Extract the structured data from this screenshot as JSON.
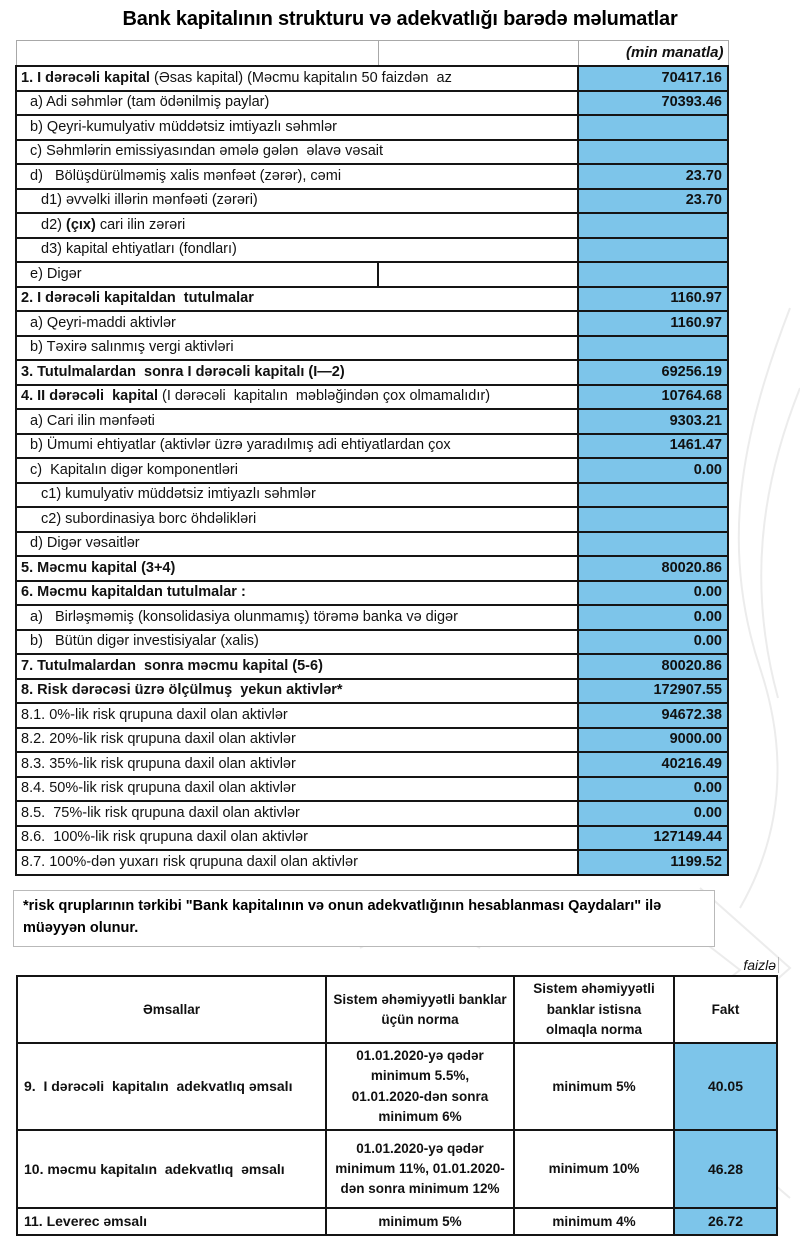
{
  "page": {
    "title": "Bank kapitalının strukturu və adekvatlığı barədə məlumatlar"
  },
  "colors": {
    "value_cell_blue": "#7dc5ea",
    "grid_black": "#151515",
    "light_gray_border": "#b9b9b9"
  },
  "capital_table": {
    "unit_label": "(min manatla)",
    "rows": [
      {
        "segments": [
          {
            "t": "1. I dərəcəli kapital",
            "b": true
          },
          {
            "t": " (Əsas kapital) (Məcmu kapitalın 50 faizdən  az",
            "b": false
          }
        ],
        "value": "70417.16",
        "indent": 0
      },
      {
        "segments": [
          {
            "t": "a) Adi səhmlər (tam ödənilmiş paylar)",
            "b": false
          }
        ],
        "value": "70393.46",
        "indent": 1
      },
      {
        "segments": [
          {
            "t": "b) Qeyri-kumulyativ müddətsiz imtiyazlı səhmlər",
            "b": false
          }
        ],
        "value": "",
        "indent": 1
      },
      {
        "segments": [
          {
            "t": "c) Səhmlərin emissiyasından əmələ gələn  əlavə vəsait",
            "b": false
          }
        ],
        "value": "",
        "indent": 1
      },
      {
        "segments": [
          {
            "t": "d)   Bölüşdürülməmiş xalis mənfəət (zərər), cəmi",
            "b": false
          }
        ],
        "value": "23.70",
        "indent": 1
      },
      {
        "segments": [
          {
            "t": "d1) əvvəlki illərin mənfəəti (zərəri)",
            "b": false
          }
        ],
        "value": "23.70",
        "indent": 2
      },
      {
        "segments": [
          {
            "t": "d2) ",
            "b": false
          },
          {
            "t": "(çıx)",
            "b": true
          },
          {
            "t": " cari ilin zərəri",
            "b": false
          }
        ],
        "value": "",
        "indent": 2
      },
      {
        "segments": [
          {
            "t": "d3) kapital ehtiyatları (fondları)",
            "b": false
          }
        ],
        "value": "",
        "indent": 2
      },
      {
        "segments": [
          {
            "t": "e) Digər",
            "b": false
          }
        ],
        "value": "",
        "indent": 1,
        "split": true
      },
      {
        "segments": [
          {
            "t": "2. I dərəcəli kapitaldan  tutulmalar",
            "b": true
          }
        ],
        "value": "1160.97",
        "indent": 0
      },
      {
        "segments": [
          {
            "t": "a) Qeyri-maddi aktivlər",
            "b": false
          }
        ],
        "value": "1160.97",
        "indent": 1
      },
      {
        "segments": [
          {
            "t": "b) Təxirə salınmış vergi aktivləri",
            "b": false
          }
        ],
        "value": "",
        "indent": 1
      },
      {
        "segments": [
          {
            "t": "3. Tutulmalardan  sonra I dərəcəli kapitalı (I—2)",
            "b": true
          }
        ],
        "value": "69256.19",
        "indent": 0
      },
      {
        "segments": [
          {
            "t": "4. II dərəcəli  kapital",
            "b": true
          },
          {
            "t": " (I dərəcəli  kapitalın  məbləğindən çox olmamalıdır)",
            "b": false
          }
        ],
        "value": "10764.68",
        "indent": 0
      },
      {
        "segments": [
          {
            "t": "a) Cari ilin mənfəəti",
            "b": false
          }
        ],
        "value": "9303.21",
        "indent": 1
      },
      {
        "segments": [
          {
            "t": "b) Ümumi ehtiyatlar (aktivlər üzrə yaradılmış adi ehtiyatlardan çox",
            "b": false
          }
        ],
        "value": "1461.47",
        "indent": 1
      },
      {
        "segments": [
          {
            "t": "c)  Kapitalın digər komponentləri",
            "b": false
          }
        ],
        "value": "0.00",
        "indent": 1
      },
      {
        "segments": [
          {
            "t": "c1) kumulyativ müddətsiz imtiyazlı səhmlər",
            "b": false
          }
        ],
        "value": "",
        "indent": 2
      },
      {
        "segments": [
          {
            "t": "c2) subordinasiya borc öhdəlikləri",
            "b": false
          }
        ],
        "value": "",
        "indent": 2
      },
      {
        "segments": [
          {
            "t": "d) Digər vəsaitlər",
            "b": false
          }
        ],
        "value": "",
        "indent": 1
      },
      {
        "segments": [
          {
            "t": "5. Məcmu kapital (3+4)",
            "b": true
          }
        ],
        "value": "80020.86",
        "indent": 0
      },
      {
        "segments": [
          {
            "t": "6. Məcmu kapitaldan tutulmalar :",
            "b": true
          }
        ],
        "value": "0.00",
        "indent": 0
      },
      {
        "segments": [
          {
            "t": "a)   Birləşməmiş (konsolidasiya olunmamış) törəmə banka və digər",
            "b": false
          }
        ],
        "value": "0.00",
        "indent": 1
      },
      {
        "segments": [
          {
            "t": "b)   Bütün digər investisiyalar (xalis)",
            "b": false
          }
        ],
        "value": "0.00",
        "indent": 1
      },
      {
        "segments": [
          {
            "t": "7. Tutulmalardan  sonra məcmu kapital (5-6)",
            "b": true
          }
        ],
        "value": "80020.86",
        "indent": 0
      },
      {
        "segments": [
          {
            "t": "8. Risk dərəcəsi üzrə ölçülmuş  yekun aktivlər*",
            "b": true
          }
        ],
        "value": "172907.55",
        "indent": 0
      },
      {
        "segments": [
          {
            "t": "8.1. 0%-lik risk qrupuna daxil olan aktivlər",
            "b": false
          }
        ],
        "value": "94672.38",
        "indent": 0
      },
      {
        "segments": [
          {
            "t": "8.2. 20%-lik risk qrupuna daxil olan aktivlər",
            "b": false
          }
        ],
        "value": "9000.00",
        "indent": 0
      },
      {
        "segments": [
          {
            "t": "8.3. 35%-lik risk qrupuna daxil olan aktivlər",
            "b": false
          }
        ],
        "value": "40216.49",
        "indent": 0
      },
      {
        "segments": [
          {
            "t": "8.4. 50%-lik risk qrupuna daxil olan aktivlər",
            "b": false
          }
        ],
        "value": "0.00",
        "indent": 0
      },
      {
        "segments": [
          {
            "t": "8.5.  75%-lik risk qrupuna daxil olan aktivlər",
            "b": false
          }
        ],
        "value": "0.00",
        "indent": 0
      },
      {
        "segments": [
          {
            "t": "8.6.  100%-lik risk qrupuna daxil olan aktivlər",
            "b": false
          }
        ],
        "value": "127149.44",
        "indent": 0
      },
      {
        "segments": [
          {
            "t": "8.7. 100%-dən yuxarı risk qrupuna daxil olan aktivlər",
            "b": false
          }
        ],
        "value": "1199.52",
        "indent": 0
      }
    ]
  },
  "footnote": {
    "text": "*risk qruplarının tərkibi \"Bank kapitalının və onun adekvatlığının hesablanması Qaydaları\" ilə müəyyən olunur."
  },
  "ratios_table": {
    "percent_label": "faizlə",
    "headers": [
      "Əmsallar",
      "Sistem əhəmiyyətli banklar üçün norma",
      "Sistem əhəmiyyətli banklar istisna olmaqla norma",
      "Fakt"
    ],
    "rows": [
      {
        "label": "9.  I dərəcəli  kapitalın  adekvatlıq əmsalı",
        "norm_systemic": "01.01.2020-yə qədər minimum 5.5%, 01.01.2020-dən sonra minimum 6%",
        "norm_other": "minimum 5%",
        "fakt": "40.05"
      },
      {
        "label": "10. məcmu kapitalın  adekvatlıq  əmsalı",
        "norm_systemic": "01.01.2020-yə qədər minimum 11%, 01.01.2020-dən sonra minimum 12%",
        "norm_other": "minimum 10%",
        "fakt": "46.28"
      },
      {
        "label": "11. Leverec əmsalı",
        "norm_systemic": "minimum 5%",
        "norm_other": "minimum 4%",
        "fakt": "26.72"
      }
    ]
  }
}
